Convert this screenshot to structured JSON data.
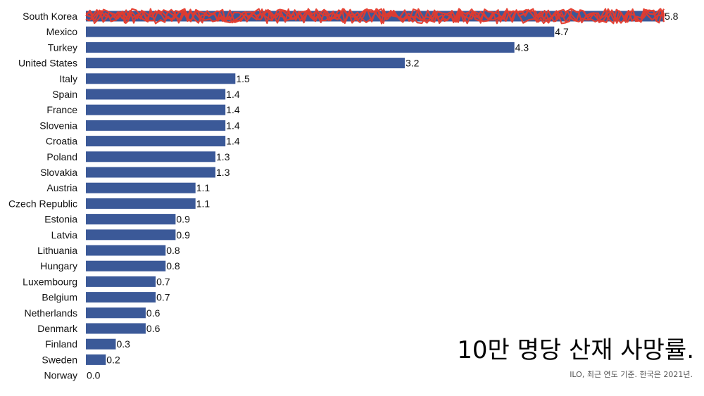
{
  "chart_data": {
    "type": "bar",
    "orientation": "horizontal",
    "title": "10만 명당 산재 사망률.",
    "source": "ILO, 최근 연도 기준. 한국은 2021년.",
    "categories": [
      "South Korea",
      "Mexico",
      "Turkey",
      "United States",
      "Italy",
      "Spain",
      "France",
      "Slovenia",
      "Croatia",
      "Poland",
      "Slovakia",
      "Austria",
      "Czech Republic",
      "Estonia",
      "Latvia",
      "Lithuania",
      "Hungary",
      "Luxembourg",
      "Belgium",
      "Netherlands",
      "Denmark",
      "Finland",
      "Sweden",
      "Norway"
    ],
    "values": [
      5.8,
      4.7,
      4.3,
      3.2,
      1.5,
      1.4,
      1.4,
      1.4,
      1.4,
      1.3,
      1.3,
      1.1,
      1.1,
      0.9,
      0.9,
      0.8,
      0.8,
      0.7,
      0.7,
      0.6,
      0.6,
      0.3,
      0.2,
      0.0
    ],
    "value_labels": [
      "5.8",
      "4.7",
      "4.3",
      "3.2",
      "1.5",
      "1.4",
      "1.4",
      "1.4",
      "1.4",
      "1.3",
      "1.3",
      "1.1",
      "1.1",
      "0.9",
      "0.9",
      "0.8",
      "0.8",
      "0.7",
      "0.7",
      "0.6",
      "0.6",
      "0.3",
      "0.2",
      "0.0"
    ],
    "xlim": [
      0,
      5.8
    ],
    "grid": false,
    "bar_color": "#3b5998",
    "highlight": {
      "category": "South Korea",
      "overlay_color": "#e53a2b",
      "style": "scribble"
    }
  }
}
